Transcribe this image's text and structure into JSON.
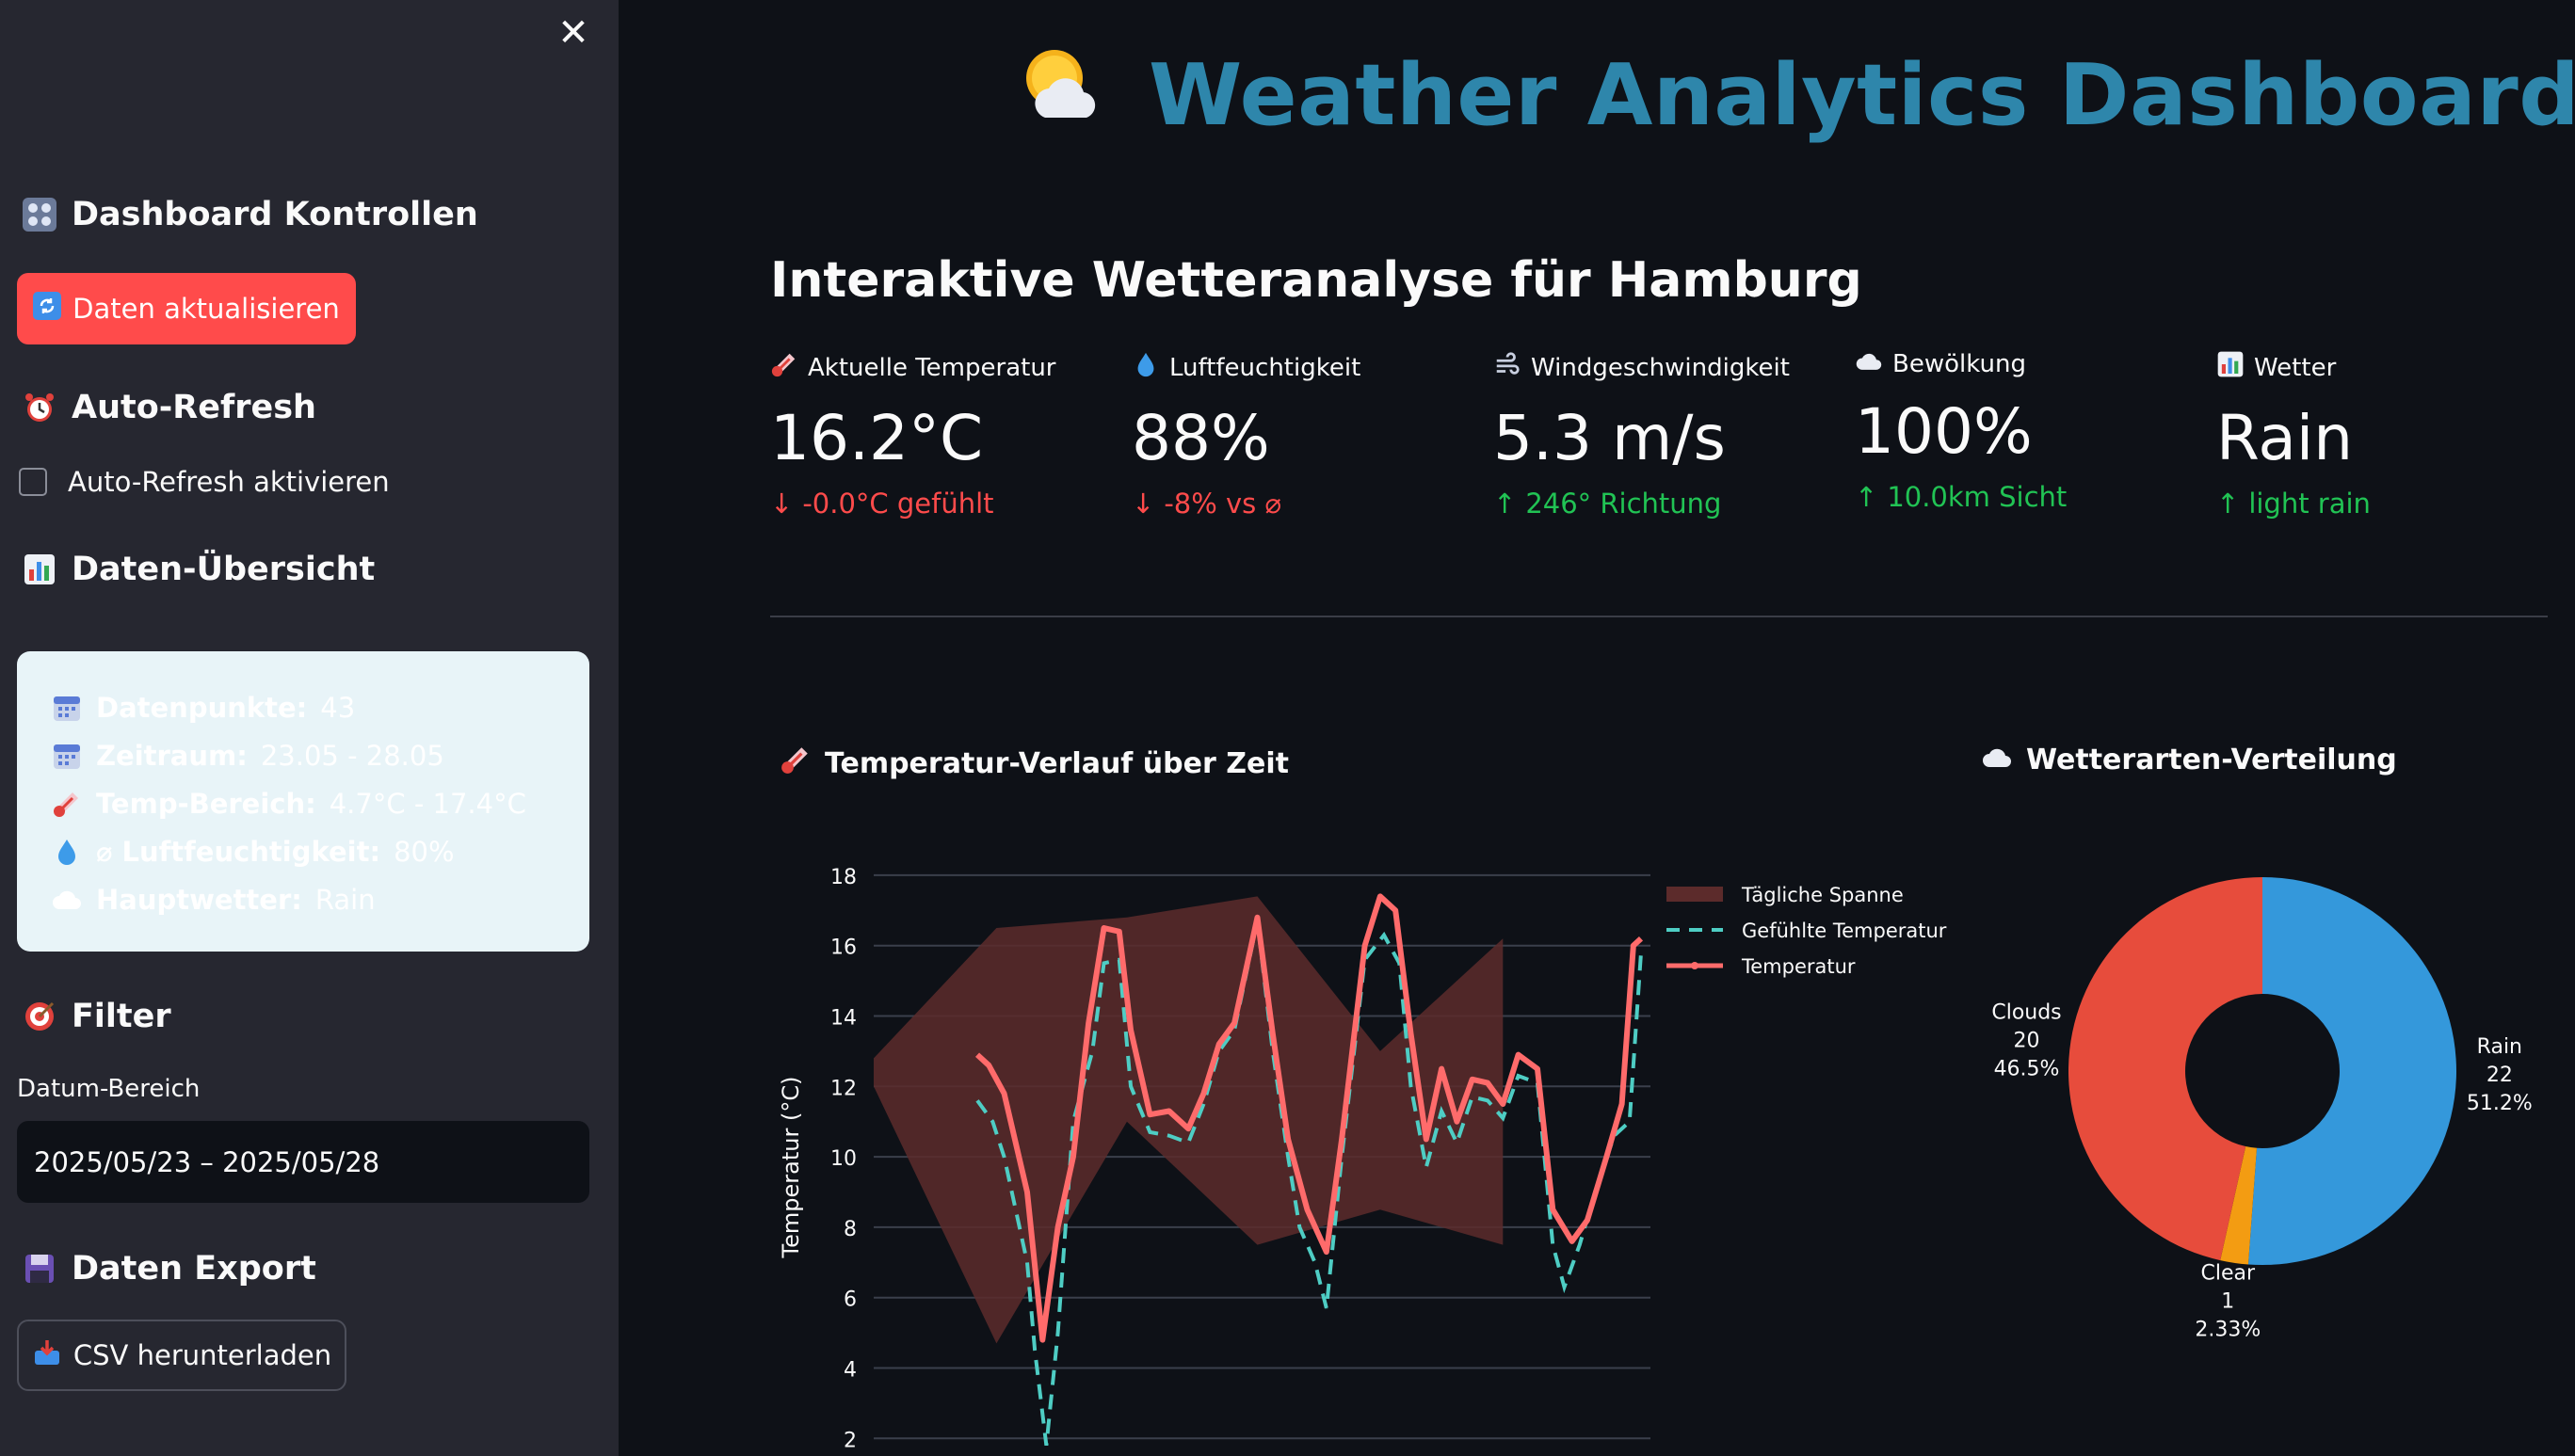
{
  "sidebar": {
    "controls_title": "Dashboard Kontrollen",
    "refresh_button": "Daten aktualisieren",
    "autorefresh_title": "Auto-Refresh",
    "autorefresh_checkbox": "Auto-Refresh aktivieren",
    "overview_title": "Daten-Übersicht",
    "overview": [
      {
        "icon": "calendar-icon",
        "label": "Datenpunkte:",
        "value": "43"
      },
      {
        "icon": "calendar-icon",
        "label": "Zeitraum:",
        "value": "23.05 - 28.05"
      },
      {
        "icon": "thermometer-icon",
        "label": "Temp-Bereich:",
        "value": "4.7°C - 17.4°C"
      },
      {
        "icon": "droplet-icon",
        "label": "⌀ Luftfeuchtigkeit:",
        "value": "80%"
      },
      {
        "icon": "cloud-icon",
        "label": "Hauptwetter:",
        "value": "Rain"
      }
    ],
    "filter_title": "Filter",
    "date_range_label": "Datum-Bereich",
    "date_range_value": "2025/05/23 – 2025/05/28",
    "export_title": "Daten Export",
    "csv_button": "CSV herunterladen"
  },
  "header": {
    "title": "Weather Analytics Dashboard",
    "subtitle": "Interaktive Wetteranalyse für Hamburg"
  },
  "metrics": [
    {
      "icon": "thermometer-icon",
      "label": "Aktuelle Temperatur",
      "value": "16.2°C",
      "delta": "-0.0°C gefühlt",
      "direction": "down"
    },
    {
      "icon": "droplet-icon",
      "label": "Luftfeuchtigkeit",
      "value": "88%",
      "delta": "-8% vs ⌀",
      "direction": "down"
    },
    {
      "icon": "wind-icon",
      "label": "Windgeschwindigkeit",
      "value": "5.3 m/s",
      "delta": "246° Richtung",
      "direction": "up"
    },
    {
      "icon": "cloud-icon",
      "label": "Bewölkung",
      "value": "100%",
      "delta": "10.0km Sicht",
      "direction": "up"
    },
    {
      "icon": "bar-chart-icon",
      "label": "Wetter",
      "value": "Rain",
      "delta": "light rain",
      "direction": "up"
    }
  ],
  "colors": {
    "accent": "#2e86ab",
    "primary_button": "#ff4b4b",
    "temperature": "#ff6b6b",
    "felt_temperature": "#4ecdc4",
    "daily_range": "#5c2b2b",
    "rain": "#3498db",
    "clouds": "#e74c3c",
    "clear": "#f39c12"
  },
  "temp_chart": {
    "title": "Temperatur-Verlauf über Zeit",
    "chart_data": {
      "type": "line",
      "ylabel": "Temperatur (°C)",
      "ylim": [
        1.5,
        18.8
      ],
      "y_ticks": [
        "2",
        "4",
        "6",
        "8",
        "10",
        "12",
        "14",
        "16",
        "18"
      ],
      "grid": true,
      "legend_position": "top-right",
      "series": [
        {
          "name": "Tägliche Spanne",
          "type": "area",
          "upper": [
            [
              0,
              12.8
            ],
            [
              0.16,
              16.5
            ],
            [
              0.33,
              16.8
            ],
            [
              0.5,
              17.4
            ],
            [
              0.66,
              13
            ],
            [
              0.82,
              16.2
            ]
          ],
          "lower": [
            [
              0,
              12
            ],
            [
              0.16,
              4.7
            ],
            [
              0.33,
              11
            ],
            [
              0.5,
              7.5
            ],
            [
              0.66,
              8.5
            ],
            [
              0.82,
              7.5
            ]
          ]
        },
        {
          "name": "Gefühlte Temperatur",
          "type": "dashed-line",
          "points": [
            [
              0.135,
              11.6
            ],
            [
              0.155,
              11
            ],
            [
              0.17,
              10
            ],
            [
              0.2,
              7
            ],
            [
              0.21,
              4.5
            ],
            [
              0.225,
              1.8
            ],
            [
              0.24,
              5
            ],
            [
              0.26,
              11
            ],
            [
              0.285,
              13
            ],
            [
              0.3,
              15.5
            ],
            [
              0.32,
              15.6
            ],
            [
              0.335,
              12
            ],
            [
              0.36,
              10.7
            ],
            [
              0.385,
              10.6
            ],
            [
              0.41,
              10.4
            ],
            [
              0.43,
              11.5
            ],
            [
              0.45,
              13
            ],
            [
              0.47,
              13.6
            ],
            [
              0.5,
              16.7
            ],
            [
              0.52,
              13
            ],
            [
              0.54,
              10
            ],
            [
              0.555,
              8
            ],
            [
              0.575,
              7
            ],
            [
              0.59,
              5.7
            ],
            [
              0.61,
              10
            ],
            [
              0.64,
              15.6
            ],
            [
              0.665,
              16.3
            ],
            [
              0.685,
              15.5
            ],
            [
              0.7,
              12
            ],
            [
              0.72,
              9.7
            ],
            [
              0.74,
              11.3
            ],
            [
              0.76,
              10.4
            ],
            [
              0.78,
              11.7
            ],
            [
              0.8,
              11.6
            ],
            [
              0.82,
              11.1
            ],
            [
              0.84,
              12.3
            ],
            [
              0.865,
              12.1
            ],
            [
              0.885,
              7.5
            ],
            [
              0.9,
              6.3
            ],
            [
              0.92,
              7.5
            ],
            [
              0.94,
              9
            ],
            [
              0.965,
              10.6
            ],
            [
              0.985,
              11
            ],
            [
              1.0,
              15.8
            ]
          ]
        },
        {
          "name": "Temperatur",
          "type": "line",
          "points": [
            [
              0.135,
              12.9
            ],
            [
              0.15,
              12.6
            ],
            [
              0.17,
              11.8
            ],
            [
              0.2,
              9
            ],
            [
              0.22,
              4.8
            ],
            [
              0.24,
              8
            ],
            [
              0.26,
              10
            ],
            [
              0.28,
              13.8
            ],
            [
              0.3,
              16.5
            ],
            [
              0.32,
              16.4
            ],
            [
              0.335,
              13.6
            ],
            [
              0.36,
              11.2
            ],
            [
              0.385,
              11.3
            ],
            [
              0.41,
              10.8
            ],
            [
              0.43,
              11.8
            ],
            [
              0.45,
              13.2
            ],
            [
              0.47,
              13.8
            ],
            [
              0.5,
              16.8
            ],
            [
              0.52,
              13.5
            ],
            [
              0.54,
              10.5
            ],
            [
              0.565,
              8.5
            ],
            [
              0.59,
              7.3
            ],
            [
              0.61,
              10.5
            ],
            [
              0.64,
              16
            ],
            [
              0.66,
              17.4
            ],
            [
              0.68,
              17
            ],
            [
              0.7,
              13.5
            ],
            [
              0.72,
              10.5
            ],
            [
              0.74,
              12.5
            ],
            [
              0.76,
              11
            ],
            [
              0.78,
              12.2
            ],
            [
              0.8,
              12.1
            ],
            [
              0.82,
              11.5
            ],
            [
              0.84,
              12.9
            ],
            [
              0.865,
              12.5
            ],
            [
              0.885,
              8.5
            ],
            [
              0.91,
              7.6
            ],
            [
              0.93,
              8.2
            ],
            [
              0.955,
              10
            ],
            [
              0.975,
              11.5
            ],
            [
              0.99,
              16
            ],
            [
              1.0,
              16.2
            ]
          ]
        }
      ]
    }
  },
  "pie_chart": {
    "title": "Wetterarten-Verteilung",
    "chart_data": {
      "type": "pie",
      "hole": true,
      "slices": [
        {
          "label": "Rain",
          "count": "22",
          "percent": "51.2%",
          "value": 22
        },
        {
          "label": "Clear",
          "count": "1",
          "percent": "2.33%",
          "value": 1
        },
        {
          "label": "Clouds",
          "count": "20",
          "percent": "46.5%",
          "value": 20
        }
      ]
    }
  }
}
